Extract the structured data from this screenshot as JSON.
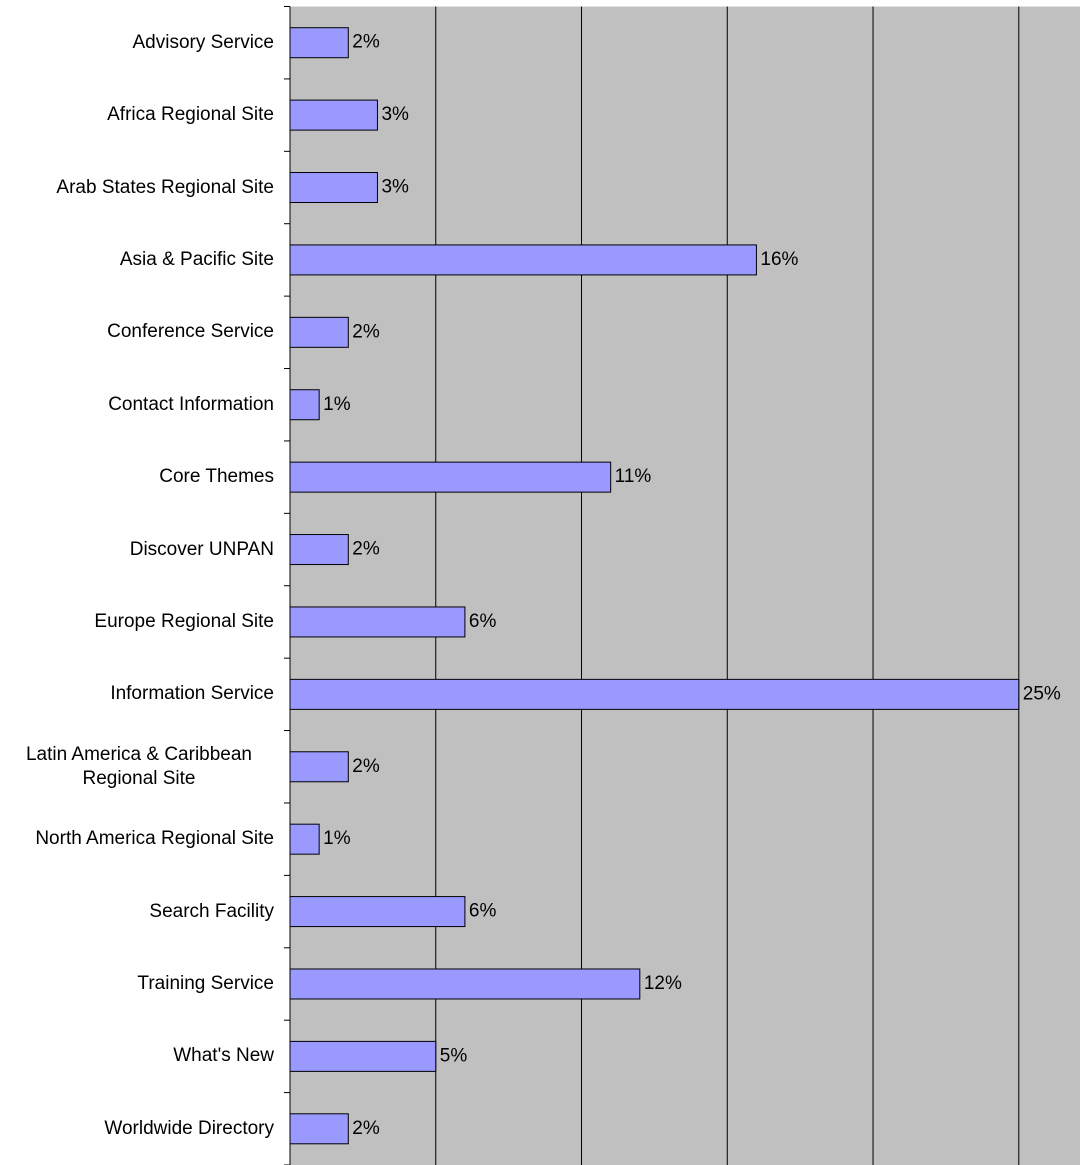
{
  "chart_data": {
    "type": "bar",
    "orientation": "horizontal",
    "categories": [
      "Advisory Service",
      "Africa Regional Site",
      "Arab States Regional Site",
      "Asia & Pacific Site",
      "Conference Service",
      "Contact Information",
      "Core Themes",
      "Discover UNPAN",
      "Europe Regional Site",
      "Information Service",
      "Latin America & Caribbean Regional Site",
      "North America Regional Site",
      "Search Facility",
      "Training Service",
      "What's New",
      "Worldwide Directory"
    ],
    "values": [
      2,
      3,
      3,
      16,
      2,
      1,
      11,
      2,
      6,
      25,
      2,
      1,
      6,
      12,
      5,
      2
    ],
    "value_labels": [
      "2%",
      "3%",
      "3%",
      "16%",
      "2%",
      "1%",
      "11%",
      "2%",
      "6%",
      "25%",
      "2%",
      "1%",
      "6%",
      "12%",
      "5%",
      "2%"
    ],
    "color": "#9999ff",
    "xlim": [
      0,
      27.1
    ],
    "xticks": [
      0,
      5,
      10,
      15,
      20,
      25
    ],
    "grid": true
  }
}
